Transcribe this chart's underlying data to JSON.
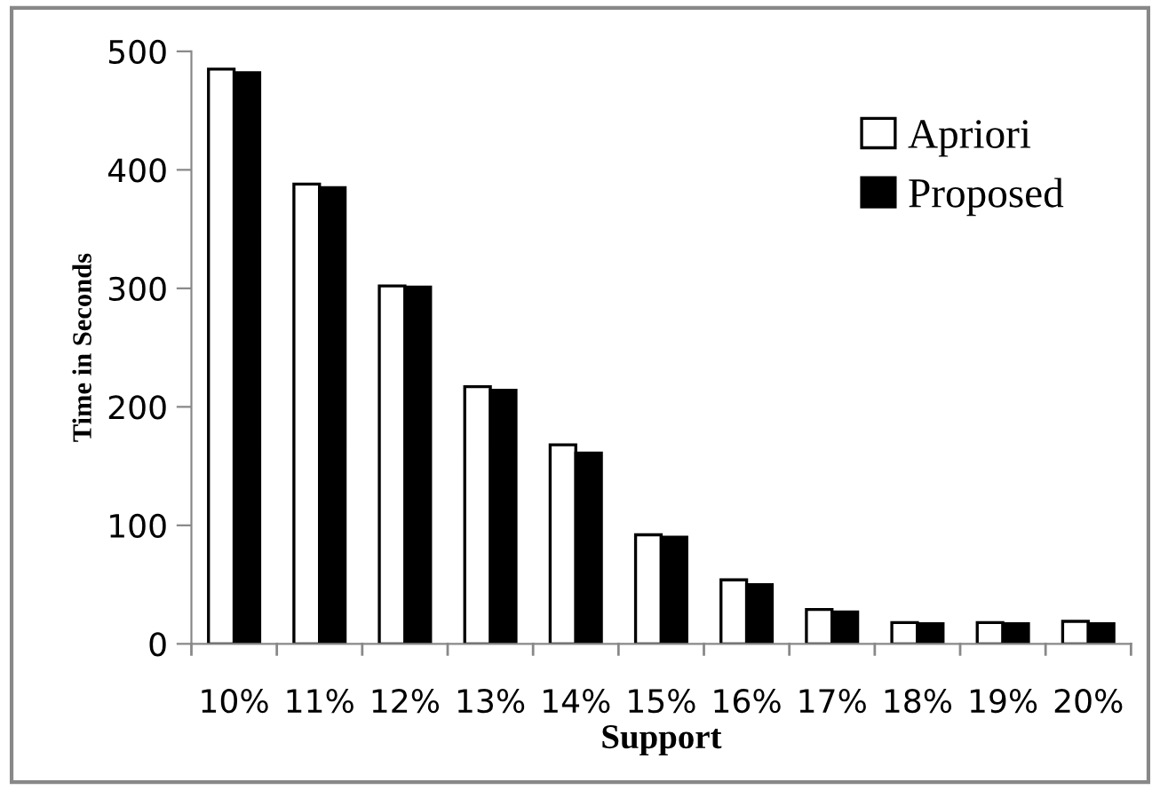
{
  "chart_data": {
    "type": "bar",
    "xlabel": "Support",
    "ylabel": "Time in Seconds",
    "categories": [
      "10%",
      "11%",
      "12%",
      "13%",
      "14%",
      "15%",
      "16%",
      "17%",
      "18%",
      "19%",
      "20%"
    ],
    "series": [
      {
        "name": "Apriori",
        "color": "#ffffff",
        "values": [
          485,
          388,
          302,
          217,
          168,
          92,
          54,
          29,
          18,
          18,
          19
        ]
      },
      {
        "name": "Proposed",
        "color": "#000000",
        "values": [
          482,
          385,
          301,
          214,
          161,
          90,
          50,
          27,
          17,
          17,
          17
        ]
      }
    ],
    "ylim": [
      0,
      500
    ],
    "yticks": [
      0,
      100,
      200,
      300,
      400,
      500
    ],
    "grid": false,
    "legend": "top right"
  }
}
